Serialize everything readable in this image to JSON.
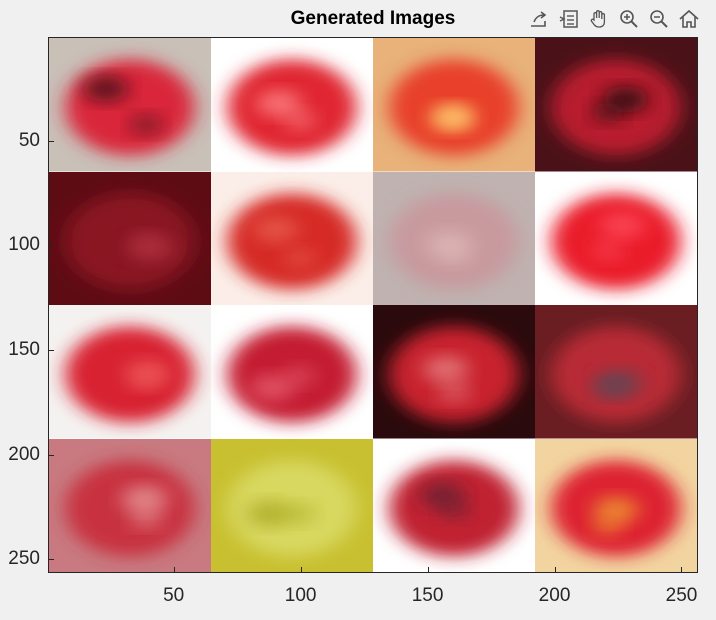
{
  "figure": {
    "title": "Generated Images"
  },
  "toolbar": {
    "buttons": [
      {
        "name": "export-icon",
        "label": "Export"
      },
      {
        "name": "brush-icon",
        "label": "Brush"
      },
      {
        "name": "pan-icon",
        "label": "Pan"
      },
      {
        "name": "zoom-in-icon",
        "label": "Zoom In"
      },
      {
        "name": "zoom-out-icon",
        "label": "Zoom Out"
      },
      {
        "name": "home-icon",
        "label": "Restore View"
      }
    ]
  },
  "axes": {
    "x_ticks": [
      "50",
      "100",
      "150",
      "200",
      "250"
    ],
    "y_ticks": [
      "50",
      "100",
      "150",
      "200",
      "250"
    ]
  },
  "tiles": [
    {
      "bg": "#c9c0b8",
      "blob": "#d9263a",
      "accent": "#3a1012"
    },
    {
      "bg": "#ffffff",
      "blob": "#e02530",
      "accent": "#ff8a8a"
    },
    {
      "bg": "#e8b27a",
      "blob": "#e8402a",
      "accent": "#ffd070"
    },
    {
      "bg": "#4a1218",
      "blob": "#b81e2e",
      "accent": "#1a0808"
    },
    {
      "bg": "#5e0c14",
      "blob": "#8a1420",
      "accent": "#b03040"
    },
    {
      "bg": "#fbeee8",
      "blob": "#d62a28",
      "accent": "#e86050"
    },
    {
      "bg": "#bfb2b0",
      "blob": "#c89a9e",
      "accent": "#e0b8b8"
    },
    {
      "bg": "#ffffff",
      "blob": "#ea1e2a",
      "accent": "#ff5060"
    },
    {
      "bg": "#f4f2f0",
      "blob": "#d82430",
      "accent": "#ee5a5a"
    },
    {
      "bg": "#ffffff",
      "blob": "#c41a30",
      "accent": "#e86070"
    },
    {
      "bg": "#2a0a0c",
      "blob": "#c8242e",
      "accent": "#e88888"
    },
    {
      "bg": "#6a1e22",
      "blob": "#b82a36",
      "accent": "#5a4a58"
    },
    {
      "bg": "#c87a80",
      "blob": "#c83040",
      "accent": "#e8a0a0"
    },
    {
      "bg": "#c8c030",
      "blob": "#d8d860",
      "accent": "#a8a820"
    },
    {
      "bg": "#ffffff",
      "blob": "#c02032",
      "accent": "#602030"
    },
    {
      "bg": "#f2d4a0",
      "blob": "#dd2030",
      "accent": "#f0a030"
    }
  ]
}
